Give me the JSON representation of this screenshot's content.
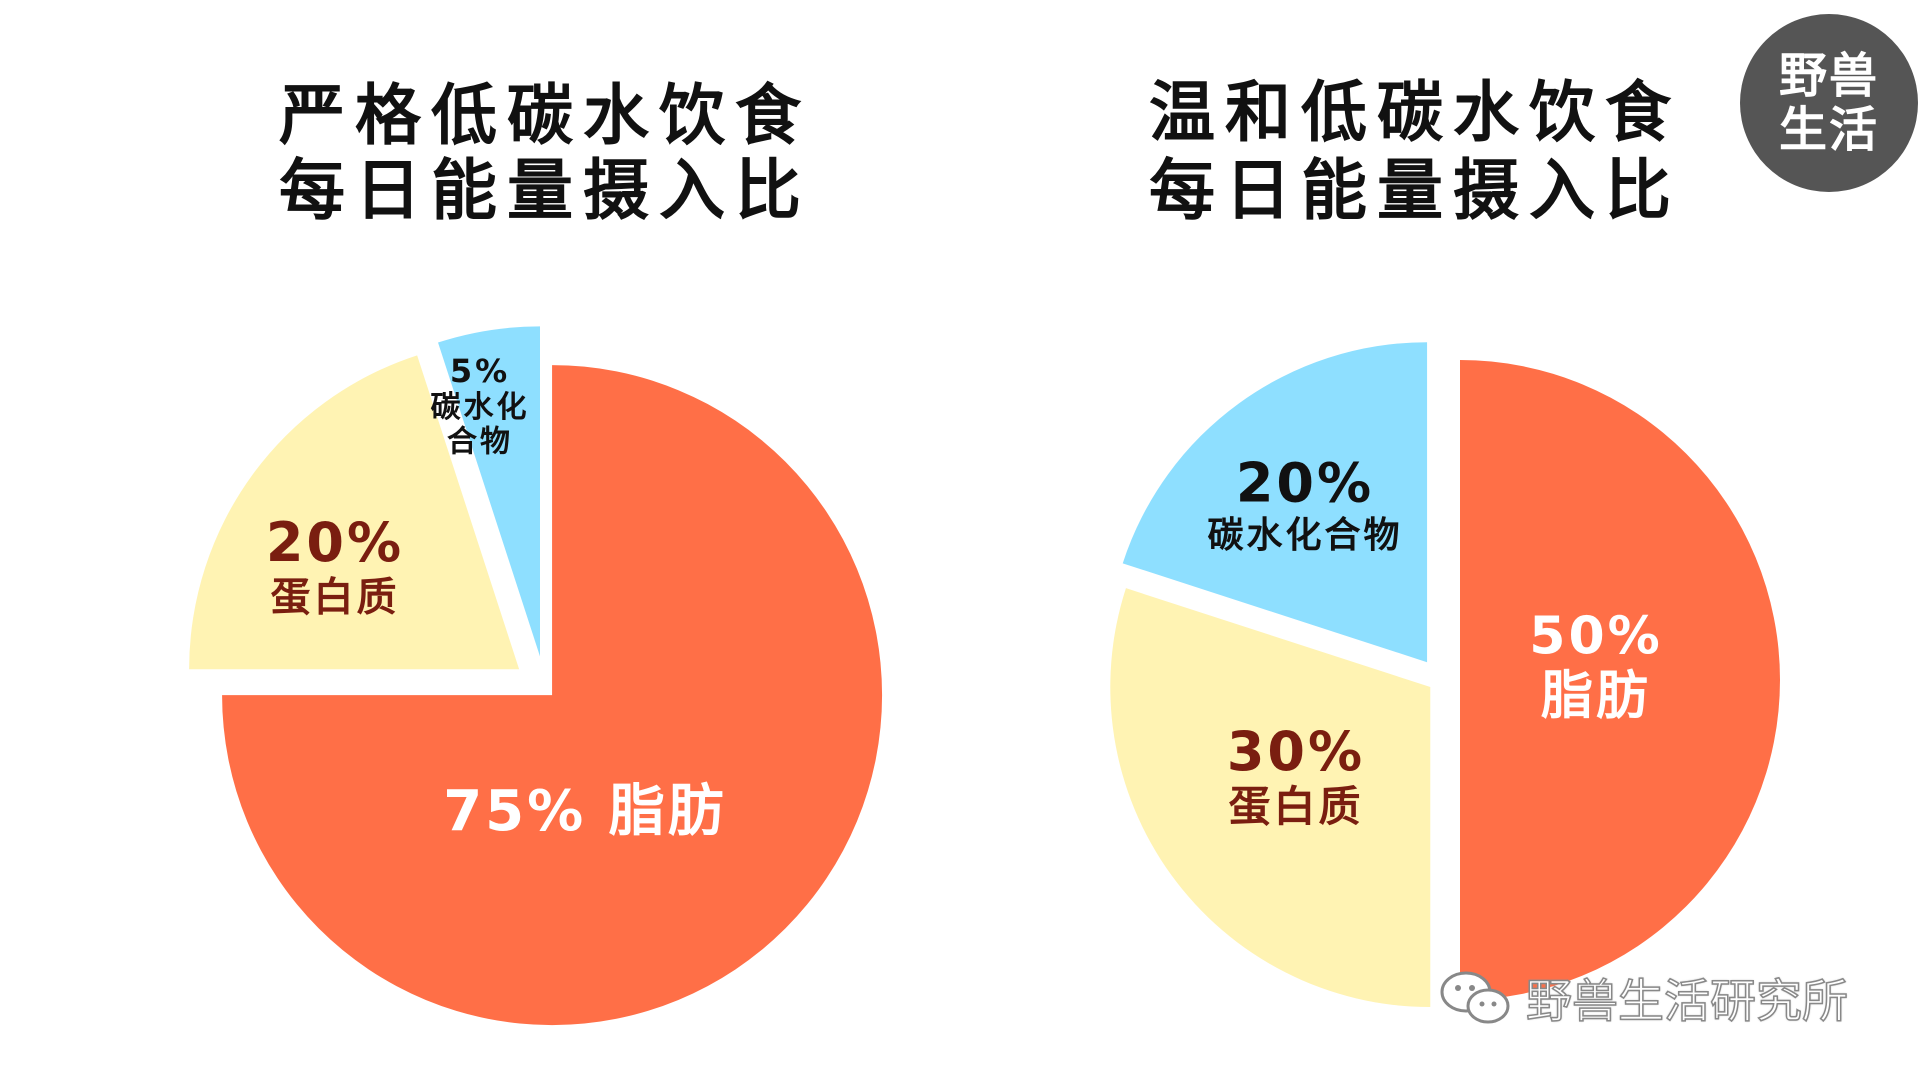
{
  "chart_data": [
    {
      "type": "pie",
      "title_lines": [
        "严格低碳水饮食",
        "每日能量摄入比"
      ],
      "slices": [
        {
          "label_lines": [
            "75%  脂肪"
          ],
          "value": 75,
          "color": "#FF6F47",
          "label_color": "#FFFFFF"
        },
        {
          "label_lines": [
            "20%",
            "蛋白质"
          ],
          "value": 20,
          "color": "#FFF3B3",
          "label_color": "#7A1E10"
        },
        {
          "label_lines": [
            "5%",
            "碳水化",
            "合物"
          ],
          "value": 5,
          "color": "#8EDFFF",
          "label_color": "#111111"
        }
      ]
    },
    {
      "type": "pie",
      "title_lines": [
        "温和低碳水饮食",
        "每日能量摄入比"
      ],
      "slices": [
        {
          "label_lines": [
            "50%",
            "脂肪"
          ],
          "value": 50,
          "color": "#FF6F47",
          "label_color": "#FFFFFF"
        },
        {
          "label_lines": [
            "30%",
            "蛋白质"
          ],
          "value": 30,
          "color": "#FFF3B3",
          "label_color": "#7A1E10"
        },
        {
          "label_lines": [
            "20%",
            "碳水化合物"
          ],
          "value": 20,
          "color": "#8EDFFF",
          "label_color": "#111111"
        }
      ]
    }
  ],
  "logo": {
    "line1": "野兽",
    "line2": "生活"
  },
  "watermark": {
    "text": "野兽生活研究所",
    "icon": "wechat-icon"
  }
}
